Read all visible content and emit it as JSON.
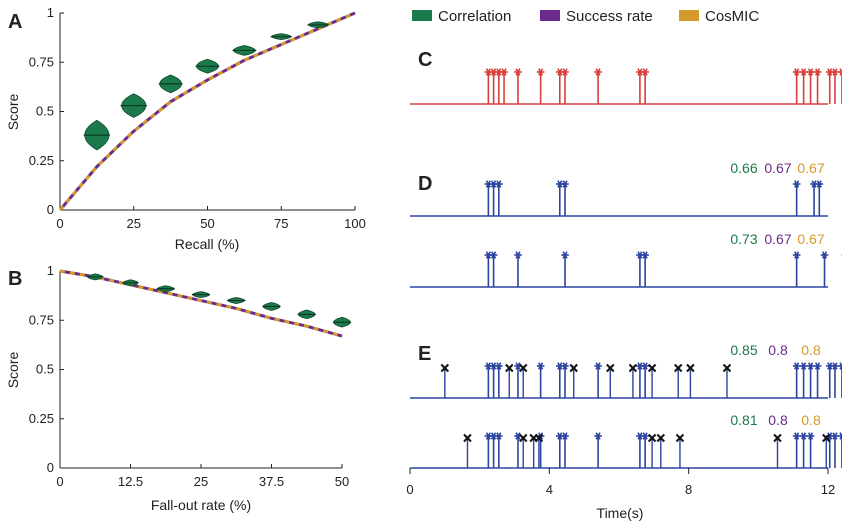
{
  "colors": {
    "correlation": "#1a7a4c",
    "success_rate": "#6a2b8c",
    "cosmic": "#d49a2a",
    "spike_red": "#d6403a",
    "spike_blue": "#2c45a0",
    "axis": "#222222",
    "marker_x": "#111111"
  },
  "legend": [
    {
      "key": "correlation",
      "label": "Correlation"
    },
    {
      "key": "success_rate",
      "label": "Success rate"
    },
    {
      "key": "cosmic",
      "label": "CosMIC"
    }
  ],
  "chart_data": [
    {
      "panel": "A",
      "type": "line",
      "xlabel": "Recall (%)",
      "ylabel": "Score",
      "xlim": [
        0,
        100
      ],
      "ylim": [
        0,
        1
      ],
      "xticks": [
        "0",
        "25",
        "50",
        "75",
        "100"
      ],
      "yticks": [
        "0",
        "0.25",
        "0.5",
        "0.75",
        "1"
      ],
      "series": [
        {
          "name": "Success rate",
          "x": [
            0,
            12.5,
            25,
            37.5,
            50,
            62.5,
            75,
            87.5,
            100
          ],
          "y": [
            0,
            0.22,
            0.4,
            0.55,
            0.66,
            0.76,
            0.84,
            0.92,
            1.0
          ]
        },
        {
          "name": "CosMIC",
          "x": [
            0,
            12.5,
            25,
            37.5,
            50,
            62.5,
            75,
            87.5,
            100
          ],
          "y": [
            0,
            0.22,
            0.4,
            0.55,
            0.66,
            0.76,
            0.84,
            0.92,
            1.0
          ]
        }
      ],
      "violins": {
        "name": "Correlation",
        "x": [
          12.5,
          25,
          37.5,
          50,
          62.5,
          75,
          87.5
        ],
        "median": [
          0.38,
          0.53,
          0.64,
          0.73,
          0.81,
          0.88,
          0.94
        ],
        "spread": [
          0.075,
          0.06,
          0.045,
          0.035,
          0.025,
          0.015,
          0.01
        ],
        "halfwidth": [
          5,
          5,
          4.5,
          4.5,
          4.5,
          4,
          4
        ]
      }
    },
    {
      "panel": "B",
      "type": "line",
      "xlabel": "Fall-out rate (%)",
      "ylabel": "Score",
      "xlim": [
        0,
        50
      ],
      "ylim": [
        0,
        1
      ],
      "xticks": [
        "0",
        "12.5",
        "25",
        "37.5",
        "50"
      ],
      "yticks": [
        "0",
        "0.25",
        "0.5",
        "0.75",
        "1"
      ],
      "series": [
        {
          "name": "Success rate",
          "x": [
            0,
            6.25,
            12.5,
            18.75,
            25,
            31.25,
            37.5,
            43.75,
            50
          ],
          "y": [
            1.0,
            0.97,
            0.93,
            0.89,
            0.85,
            0.81,
            0.76,
            0.72,
            0.67
          ]
        },
        {
          "name": "CosMIC",
          "x": [
            0,
            6.25,
            12.5,
            18.75,
            25,
            31.25,
            37.5,
            43.75,
            50
          ],
          "y": [
            1.0,
            0.97,
            0.93,
            0.89,
            0.85,
            0.81,
            0.76,
            0.72,
            0.67
          ]
        }
      ],
      "violins": {
        "name": "Correlation",
        "x": [
          6.25,
          12.5,
          18.75,
          25,
          31.25,
          37.5,
          43.75,
          50
        ],
        "median": [
          0.97,
          0.94,
          0.91,
          0.88,
          0.85,
          0.82,
          0.78,
          0.74
        ],
        "spread": [
          0.006,
          0.008,
          0.01,
          0.012,
          0.015,
          0.02,
          0.022,
          0.025
        ],
        "halfwidth": [
          1.6,
          1.6,
          1.8,
          1.8,
          1.8,
          1.8,
          1.8,
          1.8
        ]
      }
    },
    {
      "panel": "C",
      "type": "scatter",
      "description_of_marks": "spike raster",
      "spikes": [
        2.25,
        2.4,
        2.55,
        2.7,
        3.1,
        3.75,
        4.3,
        4.45,
        5.4,
        6.6,
        6.75,
        11.1,
        11.3,
        11.5,
        11.7,
        12.05,
        12.2,
        12.4,
        12.75
      ]
    },
    {
      "panel": "D",
      "type": "scatter",
      "rows": [
        {
          "spikes": [
            2.25,
            2.4,
            2.55,
            4.3,
            4.45,
            11.1,
            11.6,
            11.75,
            12.8
          ],
          "scores": [
            "0.66",
            "0.67",
            "0.67"
          ]
        },
        {
          "spikes": [
            2.25,
            2.4,
            3.1,
            4.45,
            6.6,
            6.75,
            11.1,
            11.9,
            12.5,
            12.65
          ],
          "scores": [
            "0.73",
            "0.67",
            "0.67"
          ]
        }
      ]
    },
    {
      "panel": "E",
      "type": "scatter",
      "rows": [
        {
          "spikes": [
            2.25,
            2.4,
            2.55,
            3.1,
            3.75,
            4.3,
            4.45,
            5.4,
            6.6,
            6.75,
            11.1,
            11.3,
            11.5,
            11.7,
            12.05,
            12.2,
            12.4,
            12.75
          ],
          "fp": [
            1.0,
            2.85,
            3.25,
            4.7,
            5.75,
            6.4,
            6.95,
            7.7,
            8.05,
            9.1
          ],
          "scores": [
            "0.85",
            "0.8",
            "0.8"
          ]
        },
        {
          "spikes": [
            2.25,
            2.4,
            2.55,
            3.1,
            3.75,
            4.3,
            4.45,
            5.4,
            6.6,
            6.75,
            11.1,
            11.3,
            11.5,
            12.05,
            12.2,
            12.4,
            12.75
          ],
          "fp": [
            1.65,
            3.25,
            3.55,
            3.7,
            6.95,
            7.2,
            7.75,
            10.55,
            11.95,
            12.5
          ],
          "scores": [
            "0.81",
            "0.8",
            "0.8"
          ]
        }
      ],
      "xlabel": "Time(s)",
      "xlim": [
        0,
        12
      ],
      "xticks": [
        "0",
        "4",
        "8",
        "12"
      ]
    }
  ]
}
